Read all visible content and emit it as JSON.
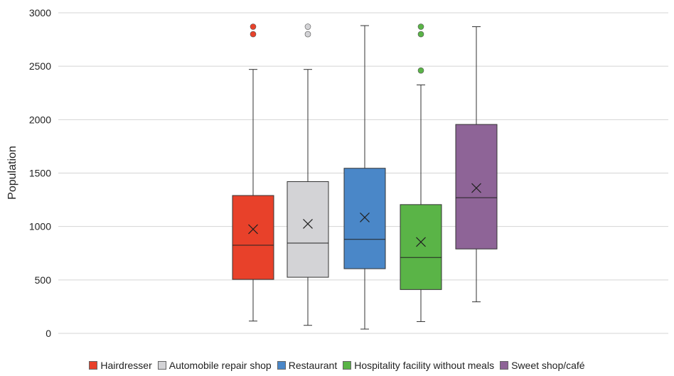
{
  "chart_data": {
    "type": "boxplot",
    "ylabel": "Population",
    "ylim": [
      0,
      3000
    ],
    "yticks": [
      0,
      500,
      1000,
      1500,
      2000,
      2500,
      3000
    ],
    "grid": true,
    "legend_position": "bottom",
    "series": [
      {
        "name": "Hairdresser",
        "color": "#e8412a",
        "whisker_low": 115,
        "q1": 505,
        "median": 825,
        "q3": 1290,
        "whisker_high": 2470,
        "mean": 975,
        "outliers": [
          2800,
          2870
        ]
      },
      {
        "name": "Automobile repair shop",
        "color": "#d3d3d6",
        "whisker_low": 75,
        "q1": 525,
        "median": 845,
        "q3": 1420,
        "whisker_high": 2470,
        "mean": 1025,
        "outliers": [
          2800,
          2870
        ]
      },
      {
        "name": "Restaurant",
        "color": "#4a87c8",
        "whisker_low": 40,
        "q1": 605,
        "median": 880,
        "q3": 1545,
        "whisker_high": 2880,
        "mean": 1085,
        "outliers": []
      },
      {
        "name": "Hospitality facility without meals",
        "color": "#5ab447",
        "whisker_low": 110,
        "q1": 410,
        "median": 710,
        "q3": 1205,
        "whisker_high": 2325,
        "mean": 855,
        "outliers": [
          2460,
          2800,
          2870
        ]
      },
      {
        "name": "Sweet shop/café",
        "color": "#8e6497",
        "whisker_low": 295,
        "q1": 790,
        "median": 1270,
        "q3": 1955,
        "whisker_high": 2870,
        "mean": 1360,
        "outliers": []
      }
    ]
  }
}
